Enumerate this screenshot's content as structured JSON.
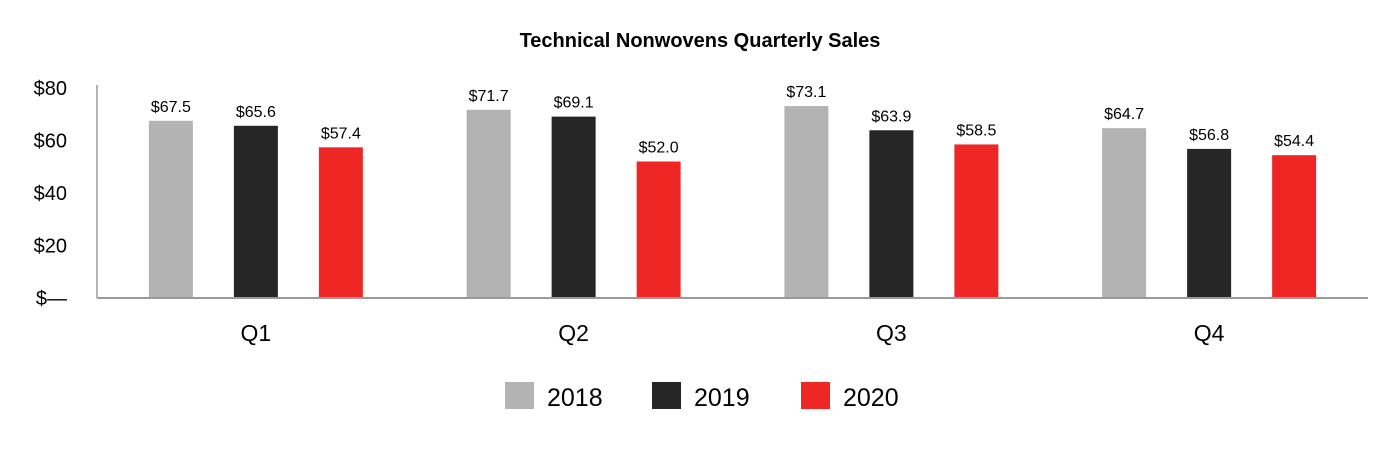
{
  "chart_data": {
    "type": "bar",
    "title": "Technical Nonwovens Quarterly Sales",
    "xlabel": "",
    "ylabel": "",
    "categories": [
      "Q1",
      "Q2",
      "Q3",
      "Q4"
    ],
    "ylim": [
      0,
      80
    ],
    "yticks": [
      {
        "value": 0,
        "label": "$—"
      },
      {
        "value": 20,
        "label": "$20"
      },
      {
        "value": 40,
        "label": "$40"
      },
      {
        "value": 60,
        "label": "$60"
      },
      {
        "value": 80,
        "label": "$80"
      }
    ],
    "grid": false,
    "legend_position": "bottom-center",
    "series": [
      {
        "name": "2018",
        "color": "#b3b3b3",
        "values": [
          67.5,
          71.7,
          73.1,
          64.7
        ],
        "labels": [
          "$67.5",
          "$71.7",
          "$73.1",
          "$64.7"
        ]
      },
      {
        "name": "2019",
        "color": "#262626",
        "values": [
          65.6,
          69.1,
          63.9,
          56.8
        ],
        "labels": [
          "$65.6",
          "$69.1",
          "$63.9",
          "$56.8"
        ]
      },
      {
        "name": "2020",
        "color": "#ee2724",
        "values": [
          57.4,
          52.0,
          58.5,
          54.4
        ],
        "labels": [
          "$57.4",
          "$52.0",
          "$58.5",
          "$54.4"
        ]
      }
    ]
  }
}
